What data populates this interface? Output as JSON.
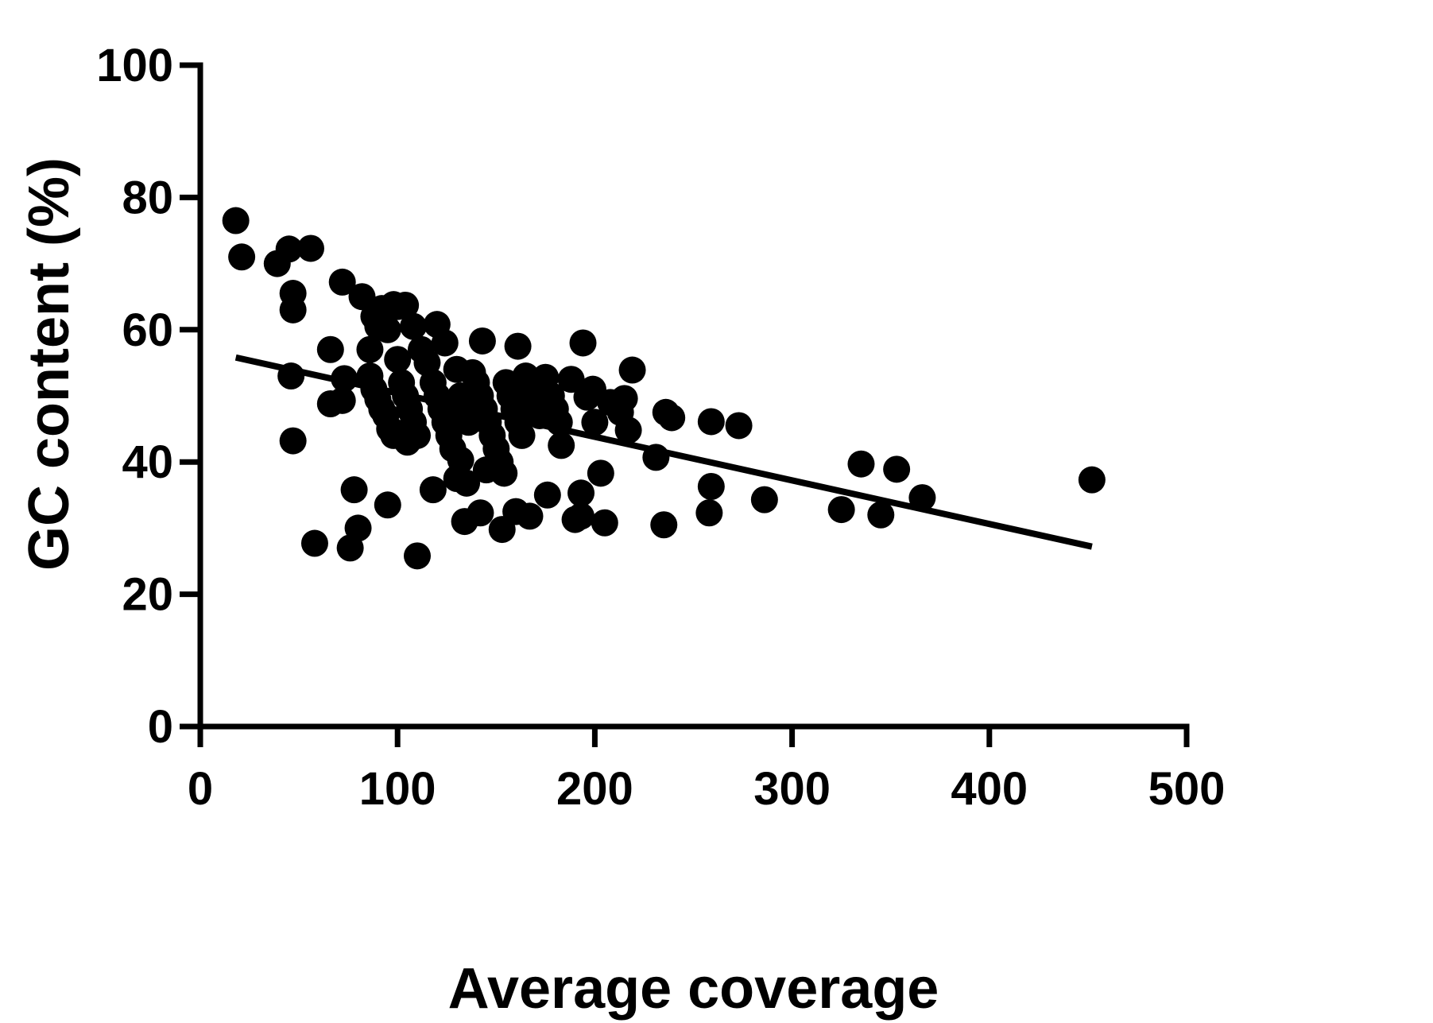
{
  "chart_data": {
    "type": "scatter",
    "title": "",
    "xlabel": "Average coverage",
    "ylabel": "GC content (%)",
    "xlim": [
      0,
      500
    ],
    "ylim": [
      0,
      100
    ],
    "x_ticks": [
      0,
      100,
      200,
      300,
      400,
      500
    ],
    "y_ticks": [
      0,
      20,
      40,
      60,
      80,
      100
    ],
    "grid": false,
    "legend": "none",
    "colors": {
      "points": "#000000",
      "trend_line": "#000000",
      "axes": "#000000"
    },
    "trend_line": {
      "x": [
        18,
        452
      ],
      "y": [
        55.8,
        27.2
      ]
    },
    "points": [
      [
        18,
        76.5
      ],
      [
        21,
        71
      ],
      [
        39,
        70
      ],
      [
        45,
        72.2
      ],
      [
        56,
        72.3
      ],
      [
        47,
        65.5
      ],
      [
        47,
        63
      ],
      [
        46,
        53
      ],
      [
        47,
        43.2
      ],
      [
        58,
        27.7
      ],
      [
        66,
        57
      ],
      [
        72,
        67.2
      ],
      [
        73,
        52.6
      ],
      [
        72,
        49.3
      ],
      [
        66,
        48.8
      ],
      [
        78,
        35.8
      ],
      [
        80,
        30
      ],
      [
        76,
        27
      ],
      [
        82,
        65
      ],
      [
        86,
        57
      ],
      [
        88,
        62
      ],
      [
        90,
        60.5
      ],
      [
        92,
        63.2
      ],
      [
        95,
        60
      ],
      [
        98,
        63.8
      ],
      [
        100,
        63.5
      ],
      [
        104,
        63.7
      ],
      [
        86,
        53
      ],
      [
        88,
        51
      ],
      [
        90,
        49.5
      ],
      [
        92,
        48
      ],
      [
        94,
        47
      ],
      [
        96,
        45
      ],
      [
        98,
        44
      ],
      [
        100,
        55.5
      ],
      [
        102,
        52
      ],
      [
        104,
        50
      ],
      [
        106,
        48
      ],
      [
        108,
        46
      ],
      [
        110,
        44
      ],
      [
        95,
        33.5
      ],
      [
        105,
        43
      ],
      [
        110,
        25.8
      ],
      [
        108,
        60.5
      ],
      [
        112,
        57
      ],
      [
        115,
        55
      ],
      [
        118,
        52
      ],
      [
        120,
        50
      ],
      [
        122,
        48
      ],
      [
        124,
        46
      ],
      [
        126,
        44
      ],
      [
        128,
        42
      ],
      [
        120,
        60.8
      ],
      [
        124,
        58
      ],
      [
        130,
        54
      ],
      [
        132,
        50
      ],
      [
        134,
        48
      ],
      [
        136,
        46
      ],
      [
        138,
        53.5
      ],
      [
        118,
        35.8
      ],
      [
        130,
        37.5
      ],
      [
        132,
        40.3
      ],
      [
        135,
        36.8
      ],
      [
        134,
        31
      ],
      [
        142,
        32.3
      ],
      [
        143,
        58.3
      ],
      [
        140,
        52
      ],
      [
        142,
        50
      ],
      [
        144,
        48
      ],
      [
        146,
        46
      ],
      [
        148,
        44
      ],
      [
        150,
        42
      ],
      [
        152,
        40
      ],
      [
        145,
        38.8
      ],
      [
        154,
        38.3
      ],
      [
        153,
        29.8
      ],
      [
        155,
        52
      ],
      [
        157,
        50
      ],
      [
        159,
        48
      ],
      [
        161,
        46
      ],
      [
        163,
        44
      ],
      [
        161,
        57.5
      ],
      [
        165,
        53
      ],
      [
        168,
        51
      ],
      [
        170,
        49
      ],
      [
        172,
        47
      ],
      [
        160,
        32.5
      ],
      [
        167,
        31.8
      ],
      [
        176,
        35
      ],
      [
        175,
        52.8
      ],
      [
        178,
        50
      ],
      [
        180,
        48
      ],
      [
        182,
        46
      ],
      [
        183,
        42.5
      ],
      [
        188,
        52.5
      ],
      [
        190,
        31.3
      ],
      [
        193,
        31.8
      ],
      [
        193,
        35.3
      ],
      [
        194,
        58
      ],
      [
        196,
        49.8
      ],
      [
        199,
        51
      ],
      [
        200,
        46
      ],
      [
        203,
        38.3
      ],
      [
        205,
        30.8
      ],
      [
        208,
        49
      ],
      [
        213,
        47.5
      ],
      [
        215,
        49.6
      ],
      [
        217,
        44.8
      ],
      [
        219,
        53.9
      ],
      [
        231,
        40.7
      ],
      [
        236,
        47.5
      ],
      [
        235,
        30.5
      ],
      [
        239,
        46.7
      ],
      [
        259,
        46.1
      ],
      [
        259,
        36.3
      ],
      [
        258,
        32.3
      ],
      [
        273,
        45.5
      ],
      [
        286,
        34.3
      ],
      [
        325,
        32.8
      ],
      [
        335,
        39.7
      ],
      [
        345,
        32
      ],
      [
        353,
        38.9
      ],
      [
        366,
        34.6
      ],
      [
        452,
        37.3
      ]
    ]
  }
}
